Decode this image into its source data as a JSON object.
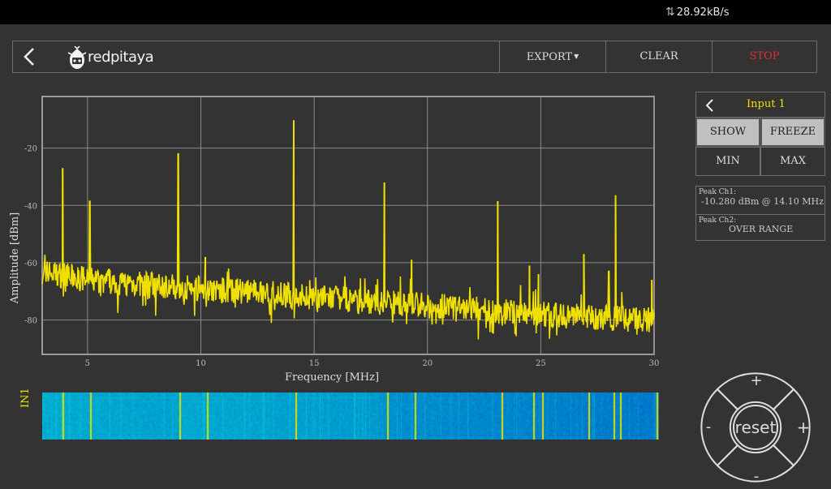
{
  "status": {
    "speed": "28.92kB/s"
  },
  "topbar": {
    "logo_text": "redpitaya",
    "export_label": "EXPORT",
    "clear_label": "CLEAR",
    "stop_label": "STOP"
  },
  "panel": {
    "title": "Input 1",
    "show_label": "SHOW",
    "freeze_label": "FREEZE",
    "min_label": "MIN",
    "max_label": "MAX",
    "peak1_label": "Peak  Ch1:",
    "peak1_value": "-10.280  dBm @ 14.10  MHz",
    "peak2_label": "Peak  Ch2:",
    "peak2_value": "OVER RANGE"
  },
  "waterfall": {
    "label": "IN1"
  },
  "dpad": {
    "up": "+",
    "down": "-",
    "left": "-",
    "right": "+",
    "center": "reset"
  },
  "colors": {
    "trace": "#f0e000",
    "stop": "#e03030",
    "grid": "#8a8a8a"
  },
  "chart_data": {
    "type": "line",
    "xlabel": "Frequency   [MHz]",
    "ylabel": "Amplitude  [dBm]",
    "xlim": [
      3,
      30
    ],
    "ylim": [
      -92,
      -2
    ],
    "xticks": [
      5,
      10,
      15,
      20,
      25,
      30
    ],
    "yticks": [
      -20,
      -40,
      -60,
      -80
    ],
    "grid": true,
    "series": [
      {
        "baseline": [
          [
            3,
            -63
          ],
          [
            5,
            -66
          ],
          [
            10,
            -69
          ],
          [
            15,
            -72
          ],
          [
            20,
            -75
          ],
          [
            25,
            -78
          ],
          [
            30,
            -80
          ]
        ],
        "peaks": [
          [
            3.9,
            -27
          ],
          [
            5.1,
            -38.5
          ],
          [
            9.0,
            -22
          ],
          [
            10.2,
            -58
          ],
          [
            14.1,
            -10.3
          ],
          [
            18.1,
            -32
          ],
          [
            19.3,
            -59
          ],
          [
            23.1,
            -38.5
          ],
          [
            24.5,
            -61
          ],
          [
            24.9,
            -64
          ],
          [
            26.9,
            -57
          ],
          [
            28.0,
            -63
          ],
          [
            28.3,
            -36.5
          ],
          [
            29.9,
            -66
          ]
        ]
      }
    ]
  }
}
